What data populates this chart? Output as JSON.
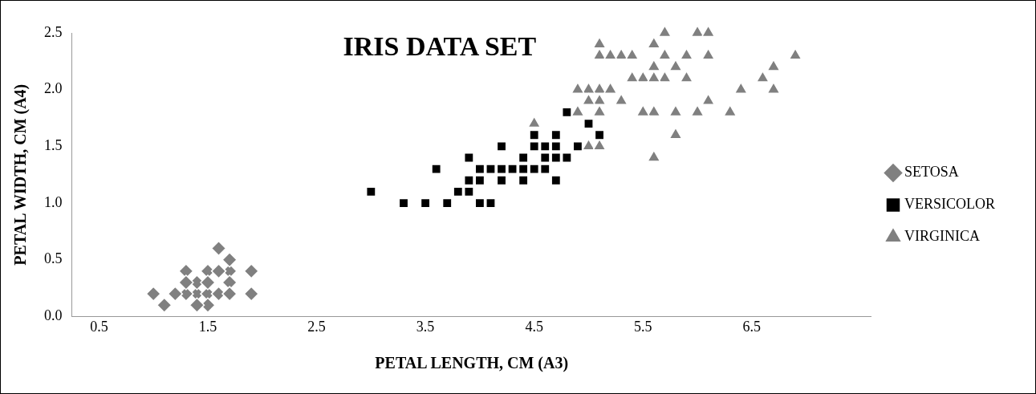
{
  "chart_data": {
    "type": "scatter",
    "title": "IRIS DATA SET",
    "xlabel": "PETAL LENGTH, CM (A3)",
    "ylabel": "PETAL WIDTH, CM (A4)",
    "xlim": [
      0.25,
      7.6
    ],
    "xticks": [
      0.5,
      1.5,
      2.5,
      3.5,
      4.5,
      5.5,
      6.5
    ],
    "ylim": [
      0,
      2.5
    ],
    "yticks": [
      {
        "value": 0,
        "label": "0.0"
      },
      0.5,
      {
        "value": 1,
        "label": "1.0"
      },
      1.5,
      {
        "value": 2,
        "label": "2.0"
      },
      2.5
    ],
    "grid": false,
    "legend": "right",
    "series": [
      {
        "name": "SETOSA",
        "color": "#808080",
        "marker": "diamond",
        "x": [
          1.4,
          1.3,
          1.5,
          1.7,
          1.4,
          1.5,
          1.6,
          1.4,
          1.1,
          1.2,
          1.5,
          1.3,
          1.7,
          1.5,
          1.7,
          1.0,
          1.7,
          1.9,
          1.6,
          1.3,
          1.6,
          1.9
        ],
        "values": [
          0.2,
          0.2,
          0.2,
          0.4,
          0.3,
          0.1,
          0.2,
          0.1,
          0.1,
          0.2,
          0.4,
          0.4,
          0.3,
          0.3,
          0.2,
          0.2,
          0.5,
          0.2,
          0.4,
          0.3,
          0.6,
          0.4
        ]
      },
      {
        "name": "VERSICOLOR",
        "color": "#000000",
        "marker": "square",
        "x": [
          4.7,
          4.5,
          4.9,
          4.0,
          4.6,
          4.5,
          4.7,
          3.3,
          4.6,
          3.9,
          3.5,
          4.2,
          4.0,
          3.6,
          4.4,
          4.1,
          3.9,
          4.8,
          4.7,
          4.3,
          4.8,
          5.0,
          3.8,
          3.7,
          3.9,
          5.1,
          4.5,
          4.7,
          4.4,
          4.1,
          4.4,
          4.6,
          4.0,
          4.2,
          4.2,
          3.0
        ],
        "values": [
          1.4,
          1.5,
          1.5,
          1.3,
          1.5,
          1.3,
          1.6,
          1.0,
          1.3,
          1.4,
          1.0,
          1.5,
          1.0,
          1.3,
          1.4,
          1.0,
          1.1,
          1.8,
          1.2,
          1.3,
          1.4,
          1.7,
          1.1,
          1.0,
          1.2,
          1.6,
          1.6,
          1.5,
          1.3,
          1.3,
          1.2,
          1.4,
          1.2,
          1.3,
          1.2,
          1.1
        ]
      },
      {
        "name": "VIRGINICA",
        "color": "#808080",
        "marker": "triangle",
        "x": [
          6.0,
          5.1,
          5.9,
          5.6,
          5.8,
          6.6,
          4.5,
          6.3,
          5.8,
          6.1,
          5.1,
          5.3,
          5.5,
          5.0,
          5.1,
          5.3,
          5.5,
          6.7,
          6.9,
          5.0,
          5.7,
          4.9,
          6.7,
          4.9,
          5.7,
          6.0,
          5.6,
          5.8,
          6.1,
          6.4,
          5.6,
          5.1,
          5.6,
          6.1,
          5.6,
          5.4,
          5.1,
          5.9,
          5.7,
          5.2,
          5.0,
          5.2,
          5.4,
          5.1
        ],
        "values": [
          2.5,
          1.9,
          2.1,
          1.8,
          2.2,
          2.1,
          1.7,
          1.8,
          1.8,
          2.5,
          2.0,
          1.9,
          2.1,
          2.0,
          2.4,
          2.3,
          1.8,
          2.2,
          2.3,
          1.5,
          2.3,
          2.0,
          2.0,
          1.8,
          2.1,
          1.8,
          2.1,
          1.6,
          1.9,
          2.0,
          2.2,
          1.5,
          1.4,
          2.3,
          2.4,
          2.1,
          2.3,
          2.3,
          2.5,
          2.3,
          1.9,
          2.0,
          2.3,
          1.8
        ]
      }
    ]
  }
}
